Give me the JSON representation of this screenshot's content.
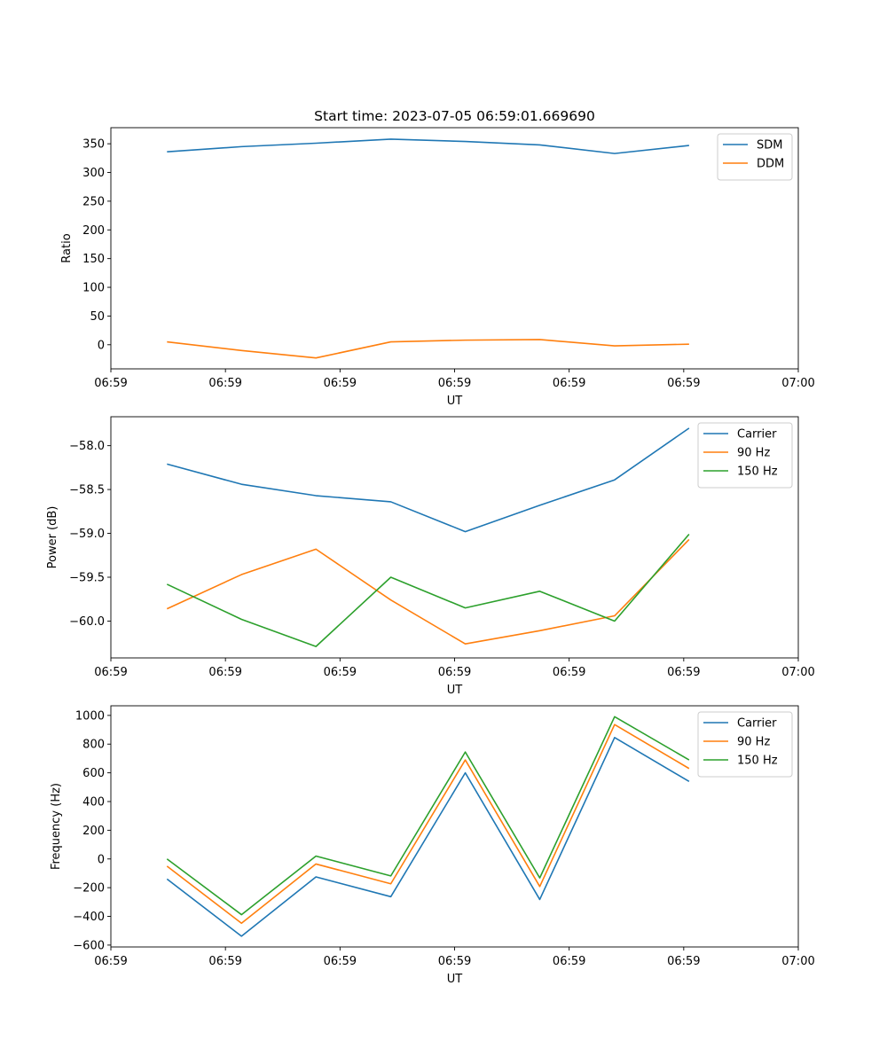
{
  "figure_title": "Start time: 2023-07-05 06:59:01.669690",
  "colors": {
    "blue": "#1f77b4",
    "orange": "#ff7f0e",
    "green": "#2ca02c"
  },
  "chart_data": [
    {
      "type": "line",
      "title": "Start time: 2023-07-05 06:59:01.669690",
      "xlabel": "UT",
      "ylabel": "Ratio",
      "x_unit": "seconds after 06:59:00",
      "xlim": [
        0,
        18
      ],
      "x_ticks": [
        {
          "value": 0,
          "label": "06:59"
        },
        {
          "value": 3,
          "label": "06:59"
        },
        {
          "value": 6,
          "label": "06:59"
        },
        {
          "value": 9,
          "label": "06:59"
        },
        {
          "value": 12,
          "label": "06:59"
        },
        {
          "value": 15,
          "label": "06:59"
        },
        {
          "value": 18,
          "label": "07:00"
        }
      ],
      "ylim": [
        -42,
        378
      ],
      "y_ticks": [
        {
          "value": 350,
          "label": "350"
        },
        {
          "value": 300,
          "label": "300"
        },
        {
          "value": 250,
          "label": "250"
        },
        {
          "value": 200,
          "label": "200"
        },
        {
          "value": 150,
          "label": "150"
        },
        {
          "value": 100,
          "label": "100"
        },
        {
          "value": 50,
          "label": "50"
        },
        {
          "value": 0,
          "label": "0"
        }
      ],
      "x": [
        1.47,
        3.42,
        5.37,
        7.33,
        9.28,
        11.23,
        13.19,
        15.14
      ],
      "series": [
        {
          "name": "SDM",
          "color": "#1f77b4",
          "values": [
            336,
            345,
            351,
            358,
            354,
            348,
            333,
            347
          ]
        },
        {
          "name": "DDM",
          "color": "#ff7f0e",
          "values": [
            5,
            -10,
            -23,
            5,
            8,
            9,
            -2,
            1
          ]
        }
      ],
      "legend": "top-right"
    },
    {
      "type": "line",
      "xlabel": "UT",
      "ylabel": "Power (dB)",
      "x_unit": "seconds after 06:59:00",
      "xlim": [
        0,
        18
      ],
      "x_ticks": [
        {
          "value": 0,
          "label": "06:59"
        },
        {
          "value": 3,
          "label": "06:59"
        },
        {
          "value": 6,
          "label": "06:59"
        },
        {
          "value": 9,
          "label": "06:59"
        },
        {
          "value": 12,
          "label": "06:59"
        },
        {
          "value": 15,
          "label": "06:59"
        },
        {
          "value": 18,
          "label": "07:00"
        }
      ],
      "ylim": [
        -60.42,
        -57.67
      ],
      "y_ticks": [
        {
          "value": -58.0,
          "label": "−58.0"
        },
        {
          "value": -58.5,
          "label": "−58.5"
        },
        {
          "value": -59.0,
          "label": "−59.0"
        },
        {
          "value": -59.5,
          "label": "−59.5"
        },
        {
          "value": -60.0,
          "label": "−60.0"
        }
      ],
      "x": [
        1.47,
        3.42,
        5.37,
        7.33,
        9.28,
        11.23,
        13.19,
        15.14
      ],
      "series": [
        {
          "name": "Carrier",
          "color": "#1f77b4",
          "values": [
            -58.21,
            -58.44,
            -58.57,
            -58.64,
            -58.98,
            -58.68,
            -58.39,
            -57.8
          ]
        },
        {
          "name": "90 Hz",
          "color": "#ff7f0e",
          "values": [
            -59.86,
            -59.47,
            -59.18,
            -59.76,
            -60.26,
            -60.11,
            -59.94,
            -59.07
          ]
        },
        {
          "name": "150 Hz",
          "color": "#2ca02c",
          "values": [
            -59.58,
            -59.98,
            -60.29,
            -59.5,
            -59.85,
            -59.66,
            -60.0,
            -59.01
          ]
        }
      ],
      "legend": "top-right"
    },
    {
      "type": "line",
      "xlabel": "UT",
      "ylabel": "Frequency (Hz)",
      "x_unit": "seconds after 06:59:00",
      "xlim": [
        0,
        18
      ],
      "x_ticks": [
        {
          "value": 0,
          "label": "06:59"
        },
        {
          "value": 3,
          "label": "06:59"
        },
        {
          "value": 6,
          "label": "06:59"
        },
        {
          "value": 9,
          "label": "06:59"
        },
        {
          "value": 12,
          "label": "06:59"
        },
        {
          "value": 15,
          "label": "06:59"
        },
        {
          "value": 18,
          "label": "07:00"
        }
      ],
      "ylim": [
        -613,
        1067
      ],
      "y_ticks": [
        {
          "value": 1000,
          "label": "1000"
        },
        {
          "value": 800,
          "label": "800"
        },
        {
          "value": 600,
          "label": "600"
        },
        {
          "value": 400,
          "label": "400"
        },
        {
          "value": 200,
          "label": "200"
        },
        {
          "value": 0,
          "label": "0"
        },
        {
          "value": -200,
          "label": "−200"
        },
        {
          "value": -400,
          "label": "−400"
        },
        {
          "value": -600,
          "label": "−600"
        }
      ],
      "x": [
        1.47,
        3.42,
        5.37,
        7.33,
        9.28,
        11.23,
        13.19,
        15.14
      ],
      "series": [
        {
          "name": "Carrier",
          "color": "#1f77b4",
          "values": [
            -140,
            -538,
            -125,
            -263,
            600,
            -282,
            846,
            540
          ]
        },
        {
          "name": "90 Hz",
          "color": "#ff7f0e",
          "values": [
            -50,
            -448,
            -35,
            -173,
            690,
            -192,
            936,
            630
          ]
        },
        {
          "name": "150 Hz",
          "color": "#2ca02c",
          "values": [
            0,
            -388,
            20,
            -118,
            745,
            -132,
            991,
            690
          ]
        }
      ],
      "legend": "top-right"
    }
  ]
}
